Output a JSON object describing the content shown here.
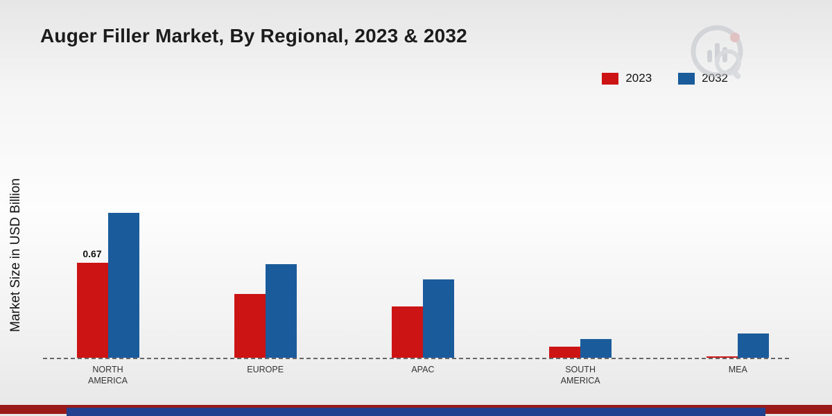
{
  "title": "Auger Filler Market, By Regional, 2023 & 2032",
  "ylabel": "Market Size in USD Billion",
  "legend": [
    {
      "label": "2023",
      "color": "#cc1414"
    },
    {
      "label": "2032",
      "color": "#1a5b9c"
    }
  ],
  "chart_data": {
    "type": "bar",
    "title": "Auger Filler Market, By Regional, 2023 & 2032",
    "xlabel": "",
    "ylabel": "Market Size in USD Billion",
    "categories": [
      "NORTH AMERICA",
      "EUROPE",
      "APAC",
      "SOUTH AMERICA",
      "MEA"
    ],
    "series": [
      {
        "name": "2023",
        "color": "#cc1414",
        "values": [
          0.67,
          0.45,
          0.36,
          0.08,
          0.01
        ]
      },
      {
        "name": "2032",
        "color": "#1a5b9c",
        "values": [
          1.02,
          0.66,
          0.55,
          0.13,
          0.17
        ]
      }
    ],
    "data_labels": [
      {
        "category_index": 0,
        "series_index": 0,
        "text": "0.67"
      }
    ],
    "ylim": [
      0,
      1.15
    ],
    "baseline_style": "dashed",
    "legend_position": "top-right",
    "grid": false
  },
  "branding": {
    "logo": "market-research-logo",
    "footer_red_color": "#9a1a1a",
    "footer_blue_color": "#23408f"
  }
}
